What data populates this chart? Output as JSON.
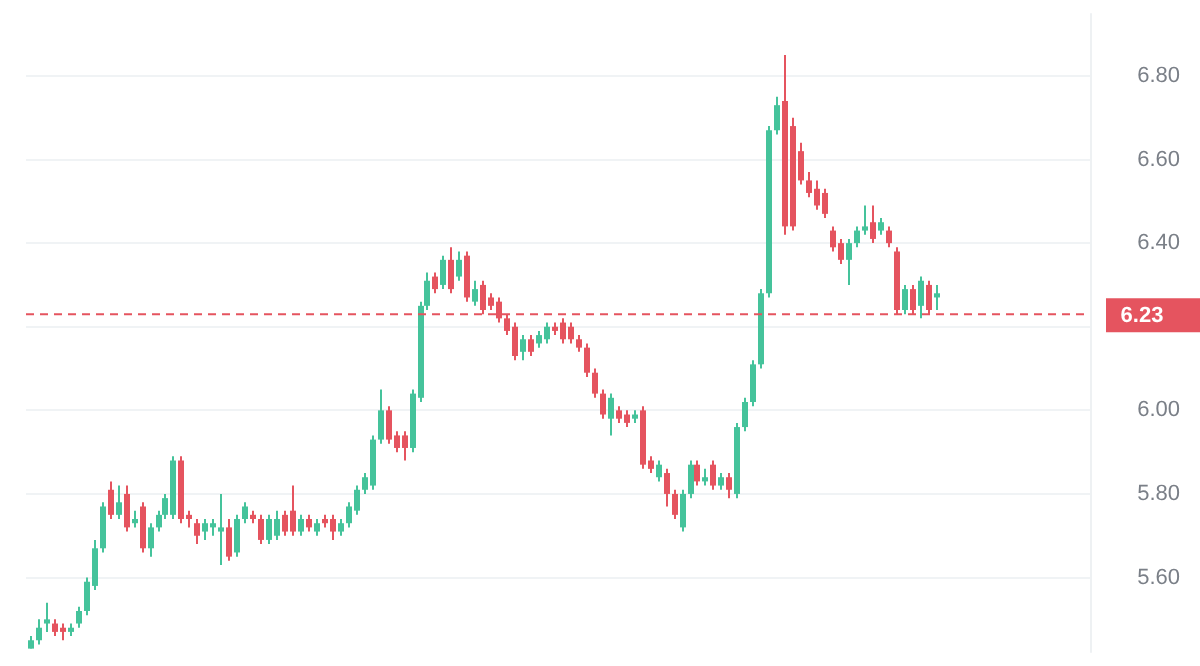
{
  "chart_data": {
    "type": "candlestick",
    "categories": [
      null,
      null,
      null,
      null,
      null,
      null,
      null,
      null,
      null,
      null,
      null,
      null,
      null,
      null,
      null,
      null,
      null,
      null,
      null,
      null,
      null,
      null,
      null,
      null,
      null,
      null,
      null,
      null,
      null,
      null,
      null,
      null,
      null,
      null,
      null,
      null,
      null,
      null,
      null,
      null,
      null,
      null,
      null,
      null,
      null,
      null,
      null,
      null,
      null,
      null,
      null,
      null,
      null,
      null,
      null,
      null,
      null,
      null,
      null,
      null,
      null,
      null,
      null,
      null,
      null,
      null,
      null,
      null,
      null,
      null,
      null,
      null,
      null,
      null,
      null,
      null,
      null,
      null,
      null,
      null,
      null,
      null,
      null,
      null,
      null,
      null,
      null,
      null,
      null,
      null,
      null,
      null,
      null,
      null,
      null,
      null,
      null,
      null,
      null,
      null,
      null,
      null,
      null,
      null,
      null,
      null,
      null,
      null,
      null,
      null,
      null,
      null,
      null,
      null,
      null,
      null,
      null,
      null,
      null,
      null,
      null,
      null,
      null,
      null,
      null,
      null,
      null,
      null,
      null,
      null,
      null,
      null,
      null,
      null
    ],
    "ohlc": [
      [
        5.43,
        5.46,
        5.43,
        5.45
      ],
      [
        5.45,
        5.5,
        5.44,
        5.48
      ],
      [
        5.49,
        5.54,
        5.47,
        5.5
      ],
      [
        5.49,
        5.5,
        5.46,
        5.47
      ],
      [
        5.48,
        5.49,
        5.45,
        5.47
      ],
      [
        5.47,
        5.49,
        5.46,
        5.48
      ],
      [
        5.49,
        5.53,
        5.48,
        5.52
      ],
      [
        5.52,
        5.6,
        5.51,
        5.59
      ],
      [
        5.58,
        5.69,
        5.57,
        5.67
      ],
      [
        5.67,
        5.78,
        5.66,
        5.77
      ],
      [
        5.81,
        5.83,
        5.74,
        5.75
      ],
      [
        5.75,
        5.82,
        5.74,
        5.78
      ],
      [
        5.8,
        5.82,
        5.71,
        5.72
      ],
      [
        5.73,
        5.76,
        5.72,
        5.74
      ],
      [
        5.77,
        5.78,
        5.66,
        5.67
      ],
      [
        5.67,
        5.73,
        5.65,
        5.72
      ],
      [
        5.72,
        5.76,
        5.71,
        5.75
      ],
      [
        5.75,
        5.8,
        5.74,
        5.79
      ],
      [
        5.75,
        5.89,
        5.74,
        5.88
      ],
      [
        5.88,
        5.89,
        5.73,
        5.74
      ],
      [
        5.75,
        5.76,
        5.72,
        5.74
      ],
      [
        5.73,
        5.74,
        5.68,
        5.7
      ],
      [
        5.71,
        5.74,
        5.69,
        5.73
      ],
      [
        5.72,
        5.74,
        5.7,
        5.73
      ],
      [
        5.71,
        5.8,
        5.63,
        5.72
      ],
      [
        5.72,
        5.74,
        5.64,
        5.65
      ],
      [
        5.66,
        5.75,
        5.65,
        5.74
      ],
      [
        5.74,
        5.78,
        5.73,
        5.77
      ],
      [
        5.75,
        5.76,
        5.73,
        5.74
      ],
      [
        5.74,
        5.75,
        5.68,
        5.69
      ],
      [
        5.69,
        5.75,
        5.68,
        5.74
      ],
      [
        5.7,
        5.76,
        5.69,
        5.74
      ],
      [
        5.75,
        5.76,
        5.7,
        5.71
      ],
      [
        5.76,
        5.82,
        5.7,
        5.71
      ],
      [
        5.71,
        5.75,
        5.7,
        5.74
      ],
      [
        5.74,
        5.75,
        5.71,
        5.72
      ],
      [
        5.71,
        5.74,
        5.7,
        5.73
      ],
      [
        5.74,
        5.75,
        5.72,
        5.73
      ],
      [
        5.74,
        5.75,
        5.69,
        5.71
      ],
      [
        5.71,
        5.74,
        5.7,
        5.73
      ],
      [
        5.73,
        5.78,
        5.72,
        5.77
      ],
      [
        5.76,
        5.82,
        5.75,
        5.81
      ],
      [
        5.81,
        5.85,
        5.8,
        5.84
      ],
      [
        5.82,
        5.94,
        5.81,
        5.93
      ],
      [
        5.93,
        6.05,
        5.92,
        6.0
      ],
      [
        6.0,
        6.01,
        5.92,
        5.93
      ],
      [
        5.94,
        5.95,
        5.9,
        5.91
      ],
      [
        5.94,
        5.95,
        5.88,
        5.91
      ],
      [
        5.91,
        6.05,
        5.9,
        6.04
      ],
      [
        6.03,
        6.26,
        6.02,
        6.25
      ],
      [
        6.25,
        6.33,
        6.24,
        6.31
      ],
      [
        6.32,
        6.33,
        6.28,
        6.29
      ],
      [
        6.3,
        6.37,
        6.29,
        6.36
      ],
      [
        6.36,
        6.39,
        6.28,
        6.29
      ],
      [
        6.32,
        6.38,
        6.31,
        6.36
      ],
      [
        6.37,
        6.38,
        6.26,
        6.27
      ],
      [
        6.26,
        6.31,
        6.25,
        6.29
      ],
      [
        6.3,
        6.31,
        6.23,
        6.24
      ],
      [
        6.27,
        6.28,
        6.24,
        6.25
      ],
      [
        6.26,
        6.27,
        6.21,
        6.22
      ],
      [
        6.22,
        6.23,
        6.18,
        6.19
      ],
      [
        6.2,
        6.21,
        6.12,
        6.13
      ],
      [
        6.14,
        6.18,
        6.12,
        6.17
      ],
      [
        6.17,
        6.18,
        6.13,
        6.14
      ],
      [
        6.16,
        6.19,
        6.15,
        6.18
      ],
      [
        6.17,
        6.21,
        6.16,
        6.2
      ],
      [
        6.2,
        6.21,
        6.18,
        6.19
      ],
      [
        6.21,
        6.22,
        6.16,
        6.17
      ],
      [
        6.2,
        6.21,
        6.16,
        6.17
      ],
      [
        6.17,
        6.18,
        6.14,
        6.15
      ],
      [
        6.15,
        6.16,
        6.08,
        6.09
      ],
      [
        6.09,
        6.1,
        6.03,
        6.04
      ],
      [
        6.04,
        6.05,
        5.98,
        5.99
      ],
      [
        5.98,
        6.04,
        5.94,
        6.03
      ],
      [
        6.0,
        6.01,
        5.97,
        5.98
      ],
      [
        5.99,
        6.0,
        5.96,
        5.97
      ],
      [
        5.98,
        6.0,
        5.97,
        5.99
      ],
      [
        6.0,
        6.01,
        5.86,
        5.87
      ],
      [
        5.88,
        5.89,
        5.85,
        5.86
      ],
      [
        5.84,
        5.88,
        5.83,
        5.87
      ],
      [
        5.85,
        5.86,
        5.77,
        5.8
      ],
      [
        5.8,
        5.81,
        5.74,
        5.75
      ],
      [
        5.72,
        5.81,
        5.71,
        5.8
      ],
      [
        5.8,
        5.88,
        5.79,
        5.87
      ],
      [
        5.87,
        5.88,
        5.82,
        5.83
      ],
      [
        5.83,
        5.86,
        5.82,
        5.84
      ],
      [
        5.87,
        5.88,
        5.81,
        5.82
      ],
      [
        5.82,
        5.85,
        5.81,
        5.84
      ],
      [
        5.84,
        5.85,
        5.79,
        5.81
      ],
      [
        5.8,
        5.97,
        5.79,
        5.96
      ],
      [
        5.96,
        6.03,
        5.95,
        6.02
      ],
      [
        6.02,
        6.12,
        6.01,
        6.11
      ],
      [
        6.11,
        6.29,
        6.1,
        6.28
      ],
      [
        6.28,
        6.68,
        6.27,
        6.67
      ],
      [
        6.67,
        6.75,
        6.66,
        6.73
      ],
      [
        6.74,
        6.85,
        6.42,
        6.44
      ],
      [
        6.68,
        6.7,
        6.43,
        6.44
      ],
      [
        6.62,
        6.64,
        6.54,
        6.55
      ],
      [
        6.55,
        6.57,
        6.51,
        6.52
      ],
      [
        6.53,
        6.55,
        6.48,
        6.49
      ],
      [
        6.52,
        6.53,
        6.46,
        6.47
      ],
      [
        6.43,
        6.44,
        6.38,
        6.39
      ],
      [
        6.4,
        6.41,
        6.35,
        6.36
      ],
      [
        6.36,
        6.41,
        6.3,
        6.4
      ],
      [
        6.4,
        6.44,
        6.39,
        6.43
      ],
      [
        6.43,
        6.49,
        6.42,
        6.44
      ],
      [
        6.45,
        6.49,
        6.4,
        6.41
      ],
      [
        6.43,
        6.46,
        6.42,
        6.45
      ],
      [
        6.43,
        6.44,
        6.39,
        6.4
      ],
      [
        6.38,
        6.39,
        6.23,
        6.24
      ],
      [
        6.24,
        6.3,
        6.23,
        6.29
      ],
      [
        6.29,
        6.3,
        6.23,
        6.24
      ],
      [
        6.25,
        6.32,
        6.22,
        6.31
      ],
      [
        6.3,
        6.31,
        6.23,
        6.24
      ],
      [
        6.27,
        6.3,
        6.24,
        6.28
      ],
      null,
      null,
      null,
      null,
      null,
      null,
      null,
      null,
      null,
      null,
      null,
      null,
      null,
      null,
      null,
      null,
      null,
      null,
      null
    ],
    "colors": [
      "#45c39b",
      "#45c39b",
      "#45c39b",
      "#e5545f",
      "#e5545f",
      "#45c39b",
      "#45c39b",
      "#45c39b",
      "#45c39b",
      "#45c39b",
      "#e5545f",
      "#45c39b",
      "#e5545f",
      "#45c39b",
      "#e5545f",
      "#45c39b",
      "#45c39b",
      "#45c39b",
      "#45c39b",
      "#e5545f",
      "#e5545f",
      "#e5545f",
      "#45c39b",
      "#45c39b",
      "#45c39b",
      "#e5545f",
      "#45c39b",
      "#45c39b",
      "#e5545f",
      "#e5545f",
      "#45c39b",
      "#45c39b",
      "#e5545f",
      "#e5545f",
      "#45c39b",
      "#e5545f",
      "#45c39b",
      "#e5545f",
      "#e5545f",
      "#45c39b",
      "#45c39b",
      "#45c39b",
      "#45c39b",
      "#45c39b",
      "#45c39b",
      "#e5545f",
      "#e5545f",
      "#e5545f",
      "#45c39b",
      "#45c39b",
      "#45c39b",
      "#e5545f",
      "#45c39b",
      "#e5545f",
      "#45c39b",
      "#e5545f",
      "#45c39b",
      "#e5545f",
      "#e5545f",
      "#e5545f",
      "#e5545f",
      "#e5545f",
      "#45c39b",
      "#e5545f",
      "#45c39b",
      "#45c39b",
      "#e5545f",
      "#e5545f",
      "#e5545f",
      "#e5545f",
      "#e5545f",
      "#e5545f",
      "#e5545f",
      "#45c39b",
      "#e5545f",
      "#e5545f",
      "#45c39b",
      "#e5545f",
      "#e5545f",
      "#45c39b",
      "#e5545f",
      "#e5545f",
      "#45c39b",
      "#45c39b",
      "#e5545f",
      "#45c39b",
      "#e5545f",
      "#45c39b",
      "#e5545f",
      "#45c39b",
      "#45c39b",
      "#45c39b",
      "#45c39b",
      "#45c39b",
      "#45c39b",
      "#e5545f",
      "#e5545f",
      "#e5545f",
      "#e5545f",
      "#e5545f",
      "#e5545f",
      "#e5545f",
      "#e5545f",
      "#45c39b",
      "#45c39b",
      "#45c39b",
      "#e5545f",
      "#45c39b",
      "#e5545f",
      "#e5545f",
      "#45c39b",
      "#e5545f",
      "#45c39b",
      "#e5545f",
      "#45c39b",
      null,
      null,
      null,
      null,
      null,
      null,
      null,
      null,
      null,
      null,
      null,
      null,
      null,
      null,
      null,
      null,
      null,
      null,
      null
    ],
    "ylim": [
      5.42,
      6.95
    ],
    "yticks": [
      {
        "value": 5.6,
        "label": "5.60"
      },
      {
        "value": 5.8,
        "label": "5.80"
      },
      {
        "value": 6.0,
        "label": "6.00"
      },
      {
        "value": 6.2,
        "label": null
      },
      {
        "value": 6.4,
        "label": "6.40"
      },
      {
        "value": 6.6,
        "label": "6.60"
      },
      {
        "value": 6.8,
        "label": "6.80"
      }
    ],
    "grid": "y",
    "tick_labels": "y",
    "ref_lines": [
      {
        "axis": "y",
        "value": 6.23,
        "label": "6.23",
        "color": "#e5545f",
        "line_style": "dashed"
      }
    ]
  }
}
